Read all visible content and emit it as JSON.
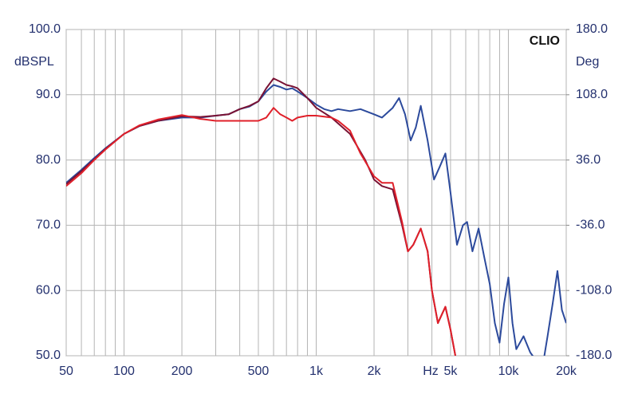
{
  "chart_data": {
    "type": "line",
    "x_label": "Hz",
    "y_label": "dBSPL",
    "y2_label": "Deg",
    "brand": "CLIO",
    "log_x": true,
    "grid": true,
    "xlim": [
      50,
      20000
    ],
    "ylim": [
      50,
      100
    ],
    "y2lim": [
      -180,
      180
    ],
    "xticks": [
      50,
      100,
      200,
      500,
      {
        "value": 1000,
        "label": "1k"
      },
      {
        "value": 2000,
        "label": "2k"
      },
      {
        "value": 5000,
        "label": "5k"
      },
      {
        "value": 10000,
        "label": "10k"
      },
      {
        "value": 20000,
        "label": "20k"
      }
    ],
    "x_minor_ticks": [
      60,
      70,
      80,
      90,
      300,
      400,
      600,
      700,
      800,
      900,
      3000,
      4000,
      6000,
      7000,
      8000,
      9000
    ],
    "yticks": [
      {
        "value": 50,
        "label": "50.0"
      },
      {
        "value": 60,
        "label": "60.0"
      },
      {
        "value": 70,
        "label": "70.0"
      },
      {
        "value": 80,
        "label": "80.0"
      },
      {
        "value": 90,
        "label": "90.0"
      },
      {
        "value": 100,
        "label": "100.0"
      }
    ],
    "y2ticks": [
      {
        "value": -180,
        "label": "-180.0"
      },
      {
        "value": -108,
        "label": "-108.0"
      },
      {
        "value": -36,
        "label": "-36.0"
      },
      {
        "value": 36,
        "label": "36.0"
      },
      {
        "value": 108,
        "label": "108.0"
      },
      {
        "value": 180,
        "label": "180.0"
      }
    ],
    "series": [
      {
        "color": "#2c4a9c",
        "x": [
          50,
          60,
          70,
          80,
          100,
          120,
          150,
          200,
          250,
          300,
          350,
          400,
          450,
          500,
          550,
          600,
          650,
          700,
          750,
          800,
          900,
          1000,
          1100,
          1200,
          1300,
          1500,
          1700,
          2000,
          2200,
          2500,
          2700,
          2900,
          3100,
          3300,
          3500,
          3800,
          4100,
          4400,
          4700,
          5000,
          5400,
          5800,
          6100,
          6500,
          7000,
          7500,
          8000,
          8500,
          9000,
          9500,
          10000,
          10500,
          11000,
          12000,
          13000,
          15000,
          16000,
          17000,
          18000,
          19000,
          20000
        ],
        "values": [
          76.5,
          78.5,
          80.3,
          81.8,
          84,
          85.2,
          86,
          86.5,
          86.5,
          86.8,
          87,
          87.8,
          88.2,
          89,
          90.5,
          91.5,
          91.2,
          90.8,
          91,
          90.5,
          89.5,
          88.5,
          87.8,
          87.5,
          87.8,
          87.5,
          87.8,
          87,
          86.5,
          88,
          89.5,
          87,
          83,
          85,
          88.3,
          83,
          77,
          79,
          81,
          75,
          67,
          70,
          70.5,
          66,
          69.5,
          65,
          61,
          55,
          52,
          58,
          62,
          55,
          51,
          53,
          50.5,
          48,
          53,
          58,
          63,
          57,
          55
        ]
      },
      {
        "color": "#7a1234",
        "x": [
          50,
          60,
          70,
          80,
          100,
          120,
          150,
          200,
          250,
          300,
          350,
          400,
          450,
          500,
          550,
          600,
          650,
          700,
          750,
          800,
          900,
          1000,
          1200,
          1500,
          1800,
          2000,
          2200,
          2500,
          2800,
          3000,
          3200,
          3500,
          3800,
          4000,
          4300,
          4700,
          5000,
          5300
        ],
        "values": [
          76.3,
          78.3,
          80.1,
          81.7,
          84,
          85.2,
          86,
          86.7,
          86.6,
          86.8,
          87,
          87.8,
          88.3,
          89,
          91,
          92.5,
          92,
          91.5,
          91.3,
          91,
          89.5,
          88,
          86.5,
          84,
          80,
          77,
          76,
          75.5,
          70,
          66,
          67,
          69.5,
          66,
          60,
          55,
          57.5,
          54,
          50
        ]
      },
      {
        "color": "#e0202a",
        "x": [
          50,
          60,
          70,
          80,
          100,
          120,
          150,
          200,
          250,
          300,
          400,
          500,
          550,
          600,
          650,
          700,
          750,
          800,
          900,
          1000,
          1200,
          1300,
          1500,
          1700,
          2000,
          2200,
          2500,
          2800,
          3000,
          3200,
          3500,
          3800,
          4000,
          4300,
          4700,
          5000,
          5300
        ],
        "values": [
          76,
          78,
          80,
          81.6,
          84,
          85.3,
          86.2,
          86.9,
          86.3,
          86,
          86,
          86,
          86.5,
          88,
          87,
          86.5,
          86,
          86.5,
          86.8,
          86.8,
          86.5,
          86,
          84.5,
          81,
          77.5,
          76.5,
          76.5,
          70.5,
          66,
          67,
          69.5,
          66,
          60,
          55,
          57.5,
          54,
          50
        ]
      }
    ]
  }
}
